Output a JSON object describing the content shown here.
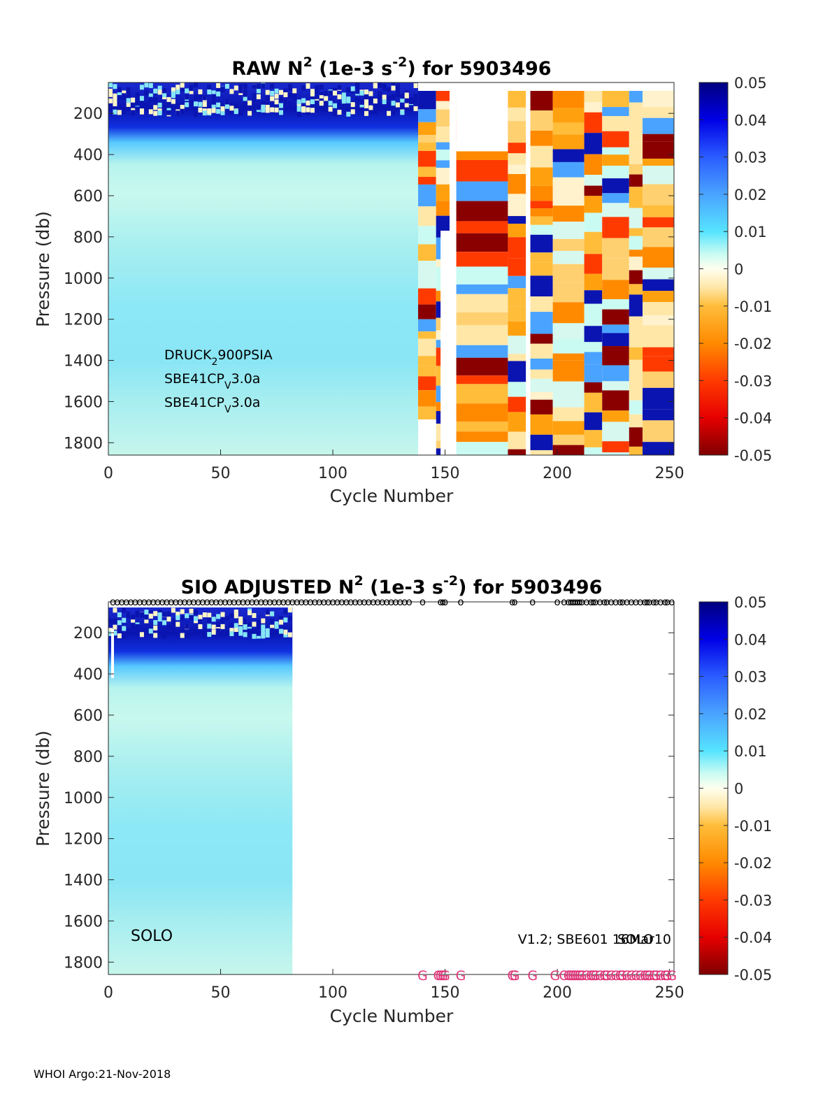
{
  "chart_data": [
    {
      "type": "heatmap",
      "title_main": "RAW N",
      "title_sup": "2",
      "title_mid": " (1e-3 s",
      "title_sup2": "-2",
      "title_end": ") for 5903496",
      "xlabel": "Cycle Number",
      "ylabel": "Pressure (db)",
      "xlim": [
        0,
        252
      ],
      "ylim": [
        50,
        1860
      ],
      "xticks": [
        "0",
        "50",
        "100",
        "150",
        "200",
        "250"
      ],
      "yticks": [
        "200",
        "400",
        "600",
        "800",
        "1000",
        "1200",
        "1400",
        "1600",
        "1800"
      ],
      "colorbar": {
        "range": [
          -0.05,
          0.05
        ],
        "ticks": [
          "0.05",
          "0.04",
          "0.03",
          "0.02",
          "0.01",
          "0",
          "-0.01",
          "-0.02",
          "-0.03",
          "-0.04",
          "-0.05"
        ]
      },
      "annotations": [
        {
          "base": "DRUCK",
          "sub": "2",
          "rest": "900PSIA"
        },
        {
          "base": "SBE41CP",
          "sub": "V",
          "rest": "3.0a"
        },
        {
          "base": "SBE41CP",
          "sub": "V",
          "rest": "3.0a"
        }
      ],
      "clean_cycles_end": 138
    },
    {
      "type": "heatmap",
      "title_main": "SIO  ADJUSTED N",
      "title_sup": "2",
      "title_mid": " (1e-3 s",
      "title_sup2": "-2",
      "title_end": ") for 5903496",
      "xlabel": "Cycle Number",
      "ylabel": "Pressure (db)",
      "xlim": [
        0,
        252
      ],
      "ylim": [
        50,
        1860
      ],
      "xticks": [
        "0",
        "50",
        "100",
        "150",
        "200",
        "250"
      ],
      "yticks": [
        "200",
        "400",
        "600",
        "800",
        "1000",
        "1200",
        "1400",
        "1600",
        "1800"
      ],
      "colorbar": {
        "range": [
          -0.05,
          0.05
        ],
        "ticks": [
          "0.05",
          "0.04",
          "0.03",
          "0.02",
          "0.01",
          "0",
          "-0.01",
          "-0.02",
          "-0.03",
          "-0.04",
          "-0.05"
        ]
      },
      "annotation_left": "SOLO",
      "annotation_right": "V1.2; SBE601 16Mar10",
      "annotation_right_overlap": "SOLO",
      "data_cycles_end": 82,
      "marker_o": "o",
      "marker_g": "G",
      "o_marker_cycles": [
        2,
        4,
        6,
        8,
        10,
        12,
        14,
        16,
        18,
        20,
        22,
        24,
        26,
        28,
        30,
        32,
        34,
        36,
        38,
        40,
        42,
        44,
        46,
        48,
        50,
        52,
        54,
        56,
        58,
        60,
        62,
        64,
        66,
        68,
        70,
        72,
        74,
        76,
        78,
        80,
        82,
        84,
        86,
        88,
        90,
        92,
        94,
        96,
        98,
        100,
        102,
        104,
        106,
        108,
        110,
        112,
        114,
        116,
        118,
        120,
        122,
        124,
        126,
        128,
        130,
        132,
        134,
        140,
        148,
        149,
        150,
        157,
        180,
        181,
        189,
        200,
        203,
        205,
        206,
        207,
        208,
        209,
        210,
        211,
        213,
        215,
        216,
        217,
        219,
        221,
        222,
        224,
        226,
        228,
        229,
        231,
        233,
        235,
        237,
        239,
        240,
        241,
        243,
        244,
        246,
        248,
        249,
        251
      ],
      "g_marker_cycles": [
        140,
        147,
        148,
        149,
        150,
        157,
        180,
        181,
        189,
        199,
        203,
        205,
        206,
        207,
        208,
        209,
        210,
        211,
        213,
        215,
        216,
        217,
        219,
        221,
        222,
        224,
        226,
        228,
        229,
        231,
        233,
        235,
        237,
        239,
        240,
        241,
        243,
        244,
        246,
        248,
        249,
        251
      ]
    }
  ],
  "footer": "WHOI Argo:21-Nov-2018"
}
